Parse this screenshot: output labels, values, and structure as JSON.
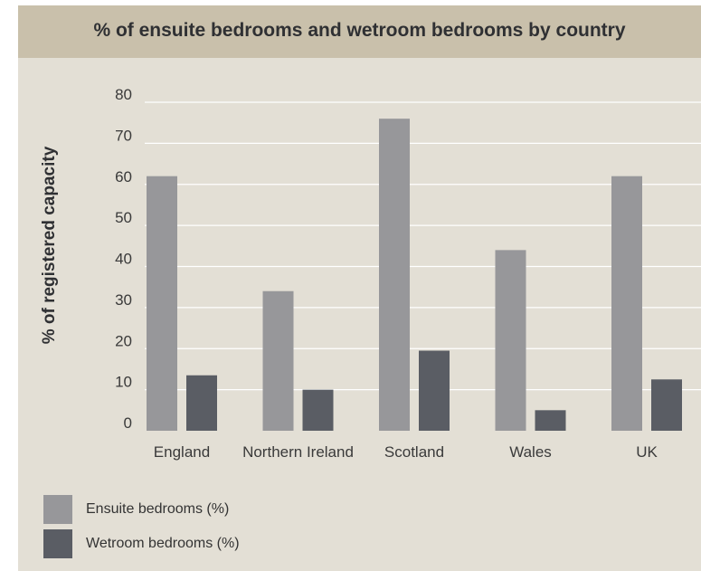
{
  "title": "% of ensuite bedrooms and wetroom bedrooms by country",
  "colors": {
    "panel": "#e3dfd5",
    "header": "#c9c0ab",
    "grid": "#ffffff",
    "ensuite": "#97979a",
    "wetroom": "#5a5d64"
  },
  "chart_data": {
    "type": "bar",
    "title": "% of ensuite bedrooms and wetroom bedrooms by country",
    "xlabel": "",
    "ylabel": "% of registered capacity",
    "ylim": [
      0,
      80
    ],
    "yticks": [
      0,
      10,
      20,
      30,
      40,
      50,
      60,
      70,
      80
    ],
    "grid": true,
    "legend_position": "bottom-left",
    "categories": [
      "England",
      "Northern Ireland",
      "Scotland",
      "Wales",
      "UK"
    ],
    "series": [
      {
        "name": "Ensuite bedrooms (%)",
        "values": [
          62,
          34,
          76,
          44,
          62
        ]
      },
      {
        "name": "Wetroom bedrooms (%)",
        "values": [
          13.5,
          10,
          19.5,
          5,
          12.5
        ]
      }
    ]
  }
}
